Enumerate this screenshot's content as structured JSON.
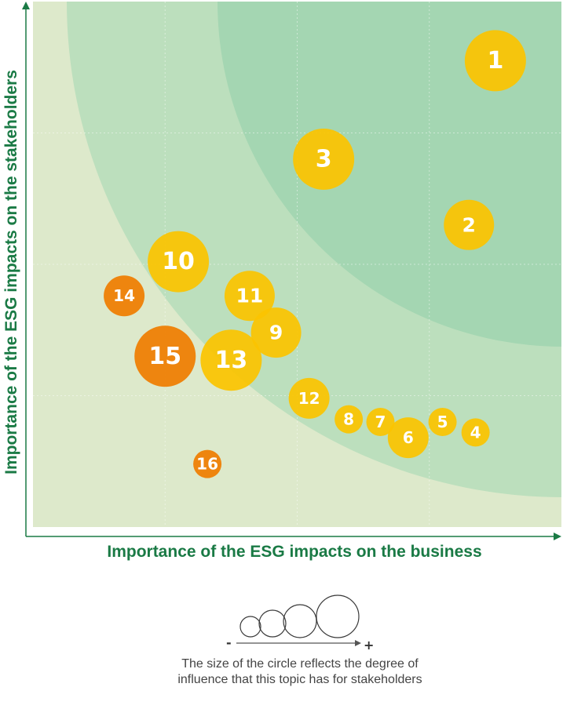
{
  "chart_data": {
    "type": "scatter",
    "xlabel": "Importance of the ESG impacts on the business",
    "ylabel": "Importance of the ESG impacts on the stakeholders",
    "xlim": [
      0,
      4
    ],
    "ylim": [
      0,
      4
    ],
    "grid": true,
    "bubbles": [
      {
        "label": "1",
        "x": 3.5,
        "y": 3.55,
        "size": 4,
        "color": "#fbc400"
      },
      {
        "label": "2",
        "x": 3.3,
        "y": 2.3,
        "size": 3,
        "color": "#fbc400"
      },
      {
        "label": "3",
        "x": 2.2,
        "y": 2.8,
        "size": 4,
        "color": "#fbc400"
      },
      {
        "label": "4",
        "x": 3.35,
        "y": 0.72,
        "size": 1,
        "color": "#fbc400"
      },
      {
        "label": "5",
        "x": 3.1,
        "y": 0.8,
        "size": 1,
        "color": "#fbc400"
      },
      {
        "label": "6",
        "x": 2.84,
        "y": 0.68,
        "size": 2,
        "color": "#fbc400"
      },
      {
        "label": "7",
        "x": 2.63,
        "y": 0.8,
        "size": 1,
        "color": "#fbc400"
      },
      {
        "label": "8",
        "x": 2.39,
        "y": 0.82,
        "size": 1,
        "color": "#fbc400"
      },
      {
        "label": "9",
        "x": 1.84,
        "y": 1.48,
        "size": 3,
        "color": "#fbc400"
      },
      {
        "label": "10",
        "x": 1.1,
        "y": 2.02,
        "size": 4,
        "color": "#fbc400"
      },
      {
        "label": "11",
        "x": 1.64,
        "y": 1.76,
        "size": 3,
        "color": "#fbc400"
      },
      {
        "label": "12",
        "x": 2.09,
        "y": 0.98,
        "size": 2,
        "color": "#fbc400"
      },
      {
        "label": "13",
        "x": 1.5,
        "y": 1.27,
        "size": 4,
        "color": "#fbc400"
      },
      {
        "label": "14",
        "x": 0.69,
        "y": 1.76,
        "size": 2,
        "color": "#ef7d00"
      },
      {
        "label": "15",
        "x": 1.0,
        "y": 1.3,
        "size": 4,
        "color": "#ef7d00"
      },
      {
        "label": "16",
        "x": 1.32,
        "y": 0.48,
        "size": 1,
        "color": "#ef7d00"
      }
    ]
  },
  "legend": {
    "minus": "-",
    "plus": "+",
    "caption_line1": "The size of the circle reflects the degree of",
    "caption_line2": "influence that this topic has for stakeholders"
  },
  "colors": {
    "axis": "#1a7a45",
    "zone_outer": "#dde9cb",
    "zone_middle": "#bcdfbd",
    "zone_inner": "#a4d6b2",
    "bubble_yellow": "#fbc400",
    "bubble_orange": "#ef7d00"
  }
}
